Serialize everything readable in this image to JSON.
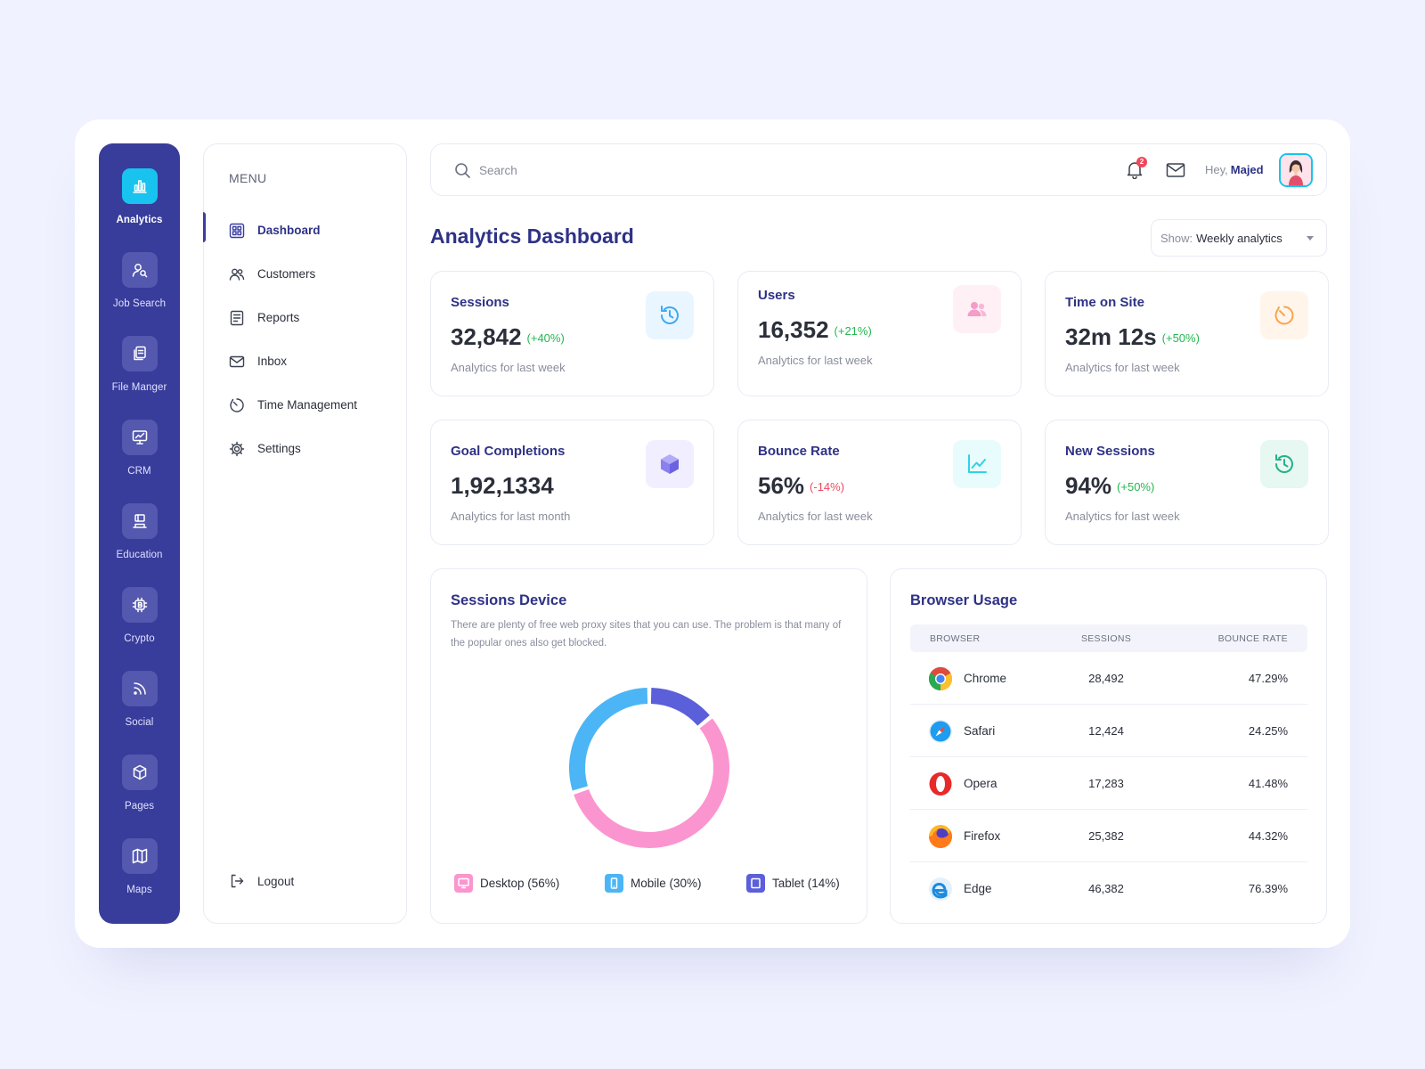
{
  "rail": {
    "items": [
      {
        "label": "Analytics",
        "icon": "bar-chart-icon",
        "active": true
      },
      {
        "label": "Job Search",
        "icon": "user-search-icon"
      },
      {
        "label": "File Manger",
        "icon": "files-icon"
      },
      {
        "label": "CRM",
        "icon": "monitor-chart-icon"
      },
      {
        "label": "Education",
        "icon": "graduation-icon"
      },
      {
        "label": "Crypto",
        "icon": "bitcoin-chip-icon"
      },
      {
        "label": "Social",
        "icon": "rss-icon"
      },
      {
        "label": "Pages",
        "icon": "cube-icon"
      },
      {
        "label": "Maps",
        "icon": "map-icon"
      }
    ]
  },
  "menu": {
    "heading": "MENU",
    "items": [
      {
        "label": "Dashboard",
        "icon": "grid-icon",
        "active": true
      },
      {
        "label": "Customers",
        "icon": "users-icon"
      },
      {
        "label": "Reports",
        "icon": "document-icon"
      },
      {
        "label": "Inbox",
        "icon": "mail-icon"
      },
      {
        "label": "Time Management",
        "icon": "timer-icon"
      },
      {
        "label": "Settings",
        "icon": "gear-icon"
      }
    ],
    "logout_label": "Logout"
  },
  "topbar": {
    "search_placeholder": "Search",
    "notification_count": "2",
    "greeting": "Hey,",
    "user_name": "Majed"
  },
  "page": {
    "title": "Analytics Dashboard",
    "show_label": "Show:",
    "show_value": "Weekly analytics"
  },
  "cards": [
    {
      "title": "Sessions",
      "value": "32,842",
      "change": "(+40%)",
      "trend": "up",
      "sub": "Analytics for last week",
      "icon": "history-icon",
      "color": "#3fa9f5",
      "bg": "#eaf6ff"
    },
    {
      "title": "Users",
      "value": "16,352",
      "change": "(+21%)",
      "trend": "up",
      "sub": "Analytics for last week",
      "icon": "users-icon",
      "color": "#f59cc8",
      "bg": "#fff0f6"
    },
    {
      "title": "Time on Site",
      "value": "32m 12s",
      "change": "(+50%)",
      "trend": "up",
      "sub": "Analytics for last week",
      "icon": "timer-icon",
      "color": "#f7a553",
      "bg": "#fff5ea"
    },
    {
      "title": "Goal Completions",
      "value": "1,92,1334",
      "change": "",
      "trend": "up",
      "sub": "Analytics for last month",
      "icon": "box-icon",
      "color": "#8a80f0",
      "bg": "#f1efff"
    },
    {
      "title": "Bounce Rate",
      "value": "56%",
      "change": "(-14%)",
      "trend": "down",
      "sub": "Analytics for last week",
      "icon": "line-chart-icon",
      "color": "#2ed3e6",
      "bg": "#e8fbfd"
    },
    {
      "title": "New Sessions",
      "value": "94%",
      "change": "(+50%)",
      "trend": "up",
      "sub": "Analytics for last week",
      "icon": "history-icon",
      "color": "#26b089",
      "bg": "#e7f7f1"
    }
  ],
  "sessions_device": {
    "title": "Sessions Device",
    "description": "There are plenty of free web proxy sites that you can use. The problem is that many of the popular ones also get blocked.",
    "legend": [
      {
        "label": "Desktop (56%)",
        "icon": "desktop-icon",
        "color": "#fb95cf"
      },
      {
        "label": "Mobile (30%)",
        "icon": "mobile-icon",
        "color": "#4cb5f5"
      },
      {
        "label": "Tablet (14%)",
        "icon": "tablet-icon",
        "color": "#5b5fd9"
      }
    ]
  },
  "chart_data": {
    "type": "pie",
    "categories": [
      "Desktop",
      "Mobile",
      "Tablet"
    ],
    "values": [
      56,
      30,
      14
    ],
    "colors": [
      "#fb95cf",
      "#4cb5f5",
      "#5b5fd9"
    ],
    "title": "Sessions Device"
  },
  "browser_usage": {
    "title": "Browser Usage",
    "columns": [
      "BROWSER",
      "SESSIONS",
      "BOUNCE RATE"
    ],
    "rows": [
      {
        "browser": "Chrome",
        "sessions": "28,492",
        "bounce": "47.29%",
        "icon": "chrome-icon"
      },
      {
        "browser": "Safari",
        "sessions": "12,424",
        "bounce": "24.25%",
        "icon": "safari-icon"
      },
      {
        "browser": "Opera",
        "sessions": "17,283",
        "bounce": "41.48%",
        "icon": "opera-icon"
      },
      {
        "browser": "Firefox",
        "sessions": "25,382",
        "bounce": "44.32%",
        "icon": "firefox-icon"
      },
      {
        "browser": "Edge",
        "sessions": "46,382",
        "bounce": "76.39%",
        "icon": "edge-icon"
      }
    ]
  }
}
